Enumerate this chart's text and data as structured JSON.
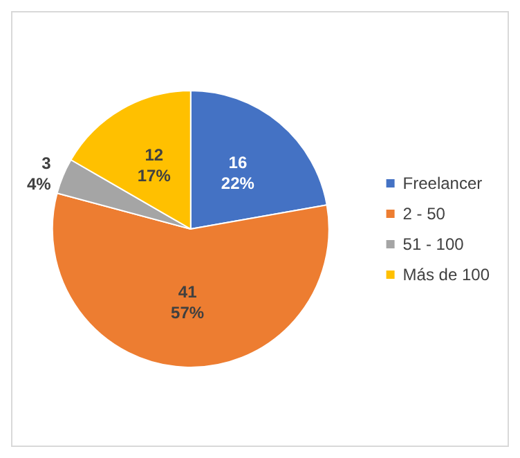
{
  "chart_data": {
    "type": "pie",
    "categories": [
      "Freelancer",
      "2 - 50",
      "51 - 100",
      "Más de 100"
    ],
    "values": [
      16,
      41,
      3,
      12
    ],
    "colors": [
      "#4472c4",
      "#ed7d31",
      "#a5a5a5",
      "#ffc000"
    ],
    "value_labels": [
      "16\n22%",
      "41\n57%",
      "3\n4%",
      "12\n17%"
    ],
    "legend": "right"
  }
}
